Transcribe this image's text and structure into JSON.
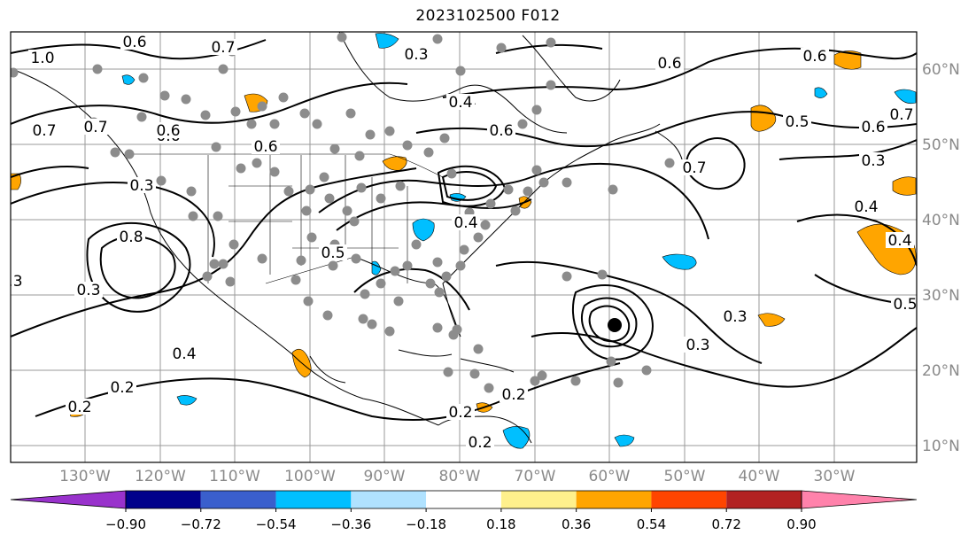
{
  "title": "2023102500 F012",
  "map": {
    "lon_labels": [
      "130°W",
      "120°W",
      "110°W",
      "100°W",
      "90°W",
      "80°W",
      "70°W",
      "60°W",
      "50°W",
      "40°W",
      "30°W"
    ],
    "lat_labels": [
      "60°N",
      "50°N",
      "40°N",
      "30°N",
      "20°N",
      "10°N"
    ],
    "contour_labels": [
      "0.6",
      "0.7",
      "0.7",
      "0.6",
      "0.5",
      "0.3",
      "0.4",
      "0.6",
      "0.6",
      "0.7",
      "0.6",
      "0.5",
      "0.7",
      "0.6",
      "0.3",
      "0.4",
      "0.4",
      "0.5",
      "0.3",
      "0.3",
      "0.6",
      "0.6",
      "0.7",
      "0.4",
      "0.3",
      "0.4",
      "0.2",
      "0.2",
      "0.2",
      "0.2",
      "0.2",
      "0.3",
      "0.3",
      "0.8",
      "0.4",
      "1.0"
    ],
    "colors": {
      "contour": "#000000",
      "coastline": "#000000",
      "grid": "#9a9a9a",
      "station_dot": "#8c8c8c",
      "positive_shading": "#ffa500",
      "negative_shading": "#00bfff"
    }
  },
  "colorbar": {
    "ticks": [
      "−0.90",
      "−0.72",
      "−0.54",
      "−0.36",
      "−0.18",
      "0.18",
      "0.36",
      "0.54",
      "0.72",
      "0.90"
    ],
    "colors": [
      "#9932cc",
      "#00008b",
      "#3a5fcd",
      "#00bfff",
      "#b0e2ff",
      "#ffffff",
      "#fff08c",
      "#ffa500",
      "#ff4500",
      "#b22222",
      "#ff82ab"
    ]
  }
}
